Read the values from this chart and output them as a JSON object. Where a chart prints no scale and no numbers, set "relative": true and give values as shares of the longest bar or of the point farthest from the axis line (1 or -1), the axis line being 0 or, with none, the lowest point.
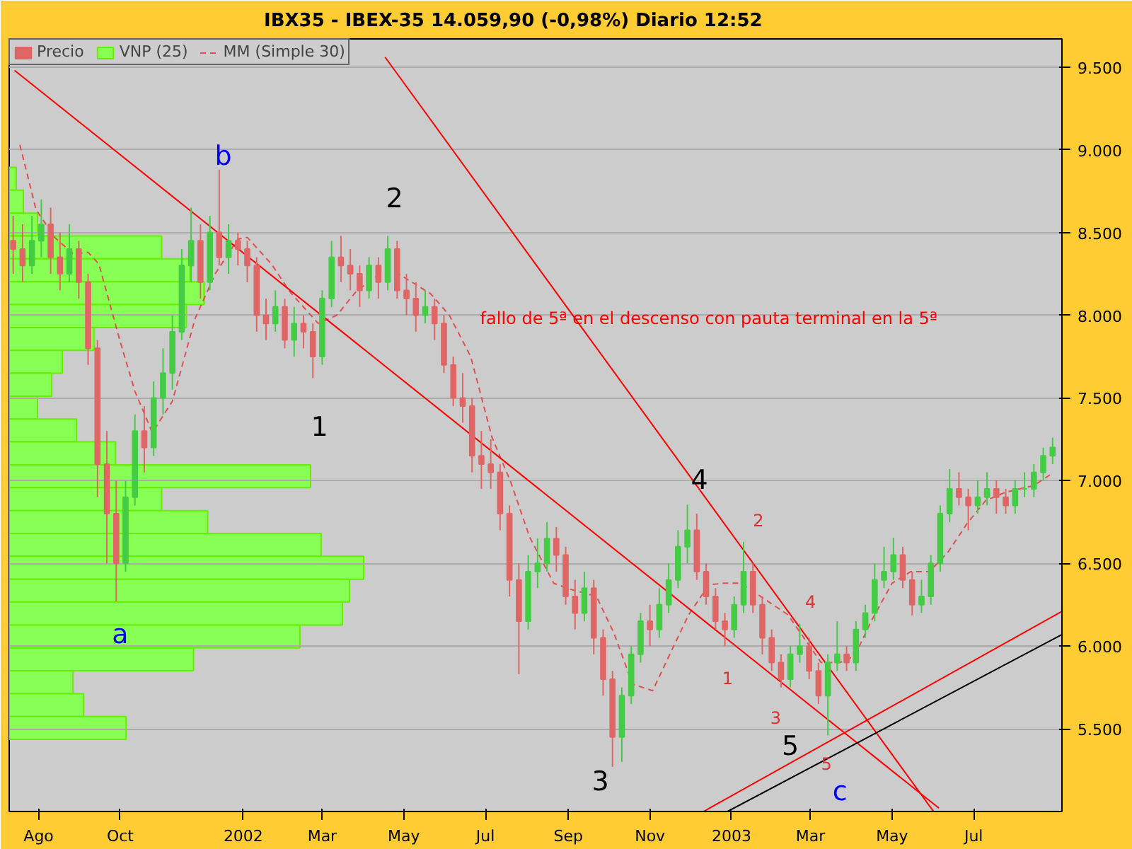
{
  "chart_data": [
    {
      "type": "candlestick",
      "title": "IBX35 - IBEX-35    14.059,90 (-0,98%)    Diario  12:52",
      "xlim": [
        "2001-07-10",
        "2003-09-05"
      ],
      "ylim": [
        5000,
        9670
      ],
      "xticks": [
        {
          "value": "2001-08-01",
          "label": "Ago"
        },
        {
          "value": "2001-10-01",
          "label": "Oct"
        },
        {
          "value": "2002-01-01",
          "label": "2002"
        },
        {
          "value": "2002-03-01",
          "label": "Mar"
        },
        {
          "value": "2002-05-01",
          "label": "May"
        },
        {
          "value": "2002-07-01",
          "label": "Jul"
        },
        {
          "value": "2002-09-01",
          "label": "Sep"
        },
        {
          "value": "2002-11-01",
          "label": "Nov"
        },
        {
          "value": "2003-01-01",
          "label": "2003"
        },
        {
          "value": "2003-03-01",
          "label": "Mar"
        },
        {
          "value": "2003-05-01",
          "label": "May"
        },
        {
          "value": "2003-07-01",
          "label": "Jul"
        }
      ],
      "yticks": [
        {
          "value": 5500,
          "label": "5.500"
        },
        {
          "value": 6000,
          "label": "6.000"
        },
        {
          "value": 6500,
          "label": "6.500"
        },
        {
          "value": 7000,
          "label": "7.000"
        },
        {
          "value": 7500,
          "label": "7.500"
        },
        {
          "value": 8000,
          "label": "8.000"
        },
        {
          "value": 8500,
          "label": "8.500"
        },
        {
          "value": 9000,
          "label": "9.000"
        },
        {
          "value": 9500,
          "label": "9.500"
        }
      ],
      "grid": "y",
      "legend": "top left",
      "series": [
        {
          "name": "Precio",
          "x": [
            "2001-07-13",
            "2001-07-20",
            "2001-07-27",
            "2001-08-03",
            "2001-08-10",
            "2001-08-17",
            "2001-08-24",
            "2001-08-31",
            "2001-09-07",
            "2001-09-14",
            "2001-09-21",
            "2001-09-28",
            "2001-10-05",
            "2001-10-12",
            "2001-10-19",
            "2001-10-26",
            "2001-11-02",
            "2001-11-09",
            "2001-11-16",
            "2001-11-23",
            "2001-11-30",
            "2001-12-07",
            "2001-12-14",
            "2001-12-21",
            "2001-12-28",
            "2002-01-04",
            "2002-01-11",
            "2002-01-18",
            "2002-01-25",
            "2002-02-01",
            "2002-02-08",
            "2002-02-15",
            "2002-02-22",
            "2002-03-01",
            "2002-03-08",
            "2002-03-15",
            "2002-03-22",
            "2002-03-29",
            "2002-04-05",
            "2002-04-12",
            "2002-04-19",
            "2002-04-26",
            "2002-05-03",
            "2002-05-10",
            "2002-05-17",
            "2002-05-24",
            "2002-05-31",
            "2002-06-07",
            "2002-06-14",
            "2002-06-21",
            "2002-06-28",
            "2002-07-05",
            "2002-07-12",
            "2002-07-19",
            "2002-07-26",
            "2002-08-02",
            "2002-08-09",
            "2002-08-16",
            "2002-08-23",
            "2002-08-30",
            "2002-09-06",
            "2002-09-13",
            "2002-09-20",
            "2002-09-27",
            "2002-10-04",
            "2002-10-11",
            "2002-10-18",
            "2002-10-25",
            "2002-11-01",
            "2002-11-08",
            "2002-11-15",
            "2002-11-22",
            "2002-11-29",
            "2002-12-06",
            "2002-12-13",
            "2002-12-20",
            "2002-12-27",
            "2003-01-03",
            "2003-01-10",
            "2003-01-17",
            "2003-01-24",
            "2003-01-31",
            "2003-02-07",
            "2003-02-14",
            "2003-02-21",
            "2003-02-28",
            "2003-03-07",
            "2003-03-14",
            "2003-03-21",
            "2003-03-28",
            "2003-04-04",
            "2003-04-11",
            "2003-04-18",
            "2003-04-25",
            "2003-05-02",
            "2003-05-09",
            "2003-05-16",
            "2003-05-23",
            "2003-05-30",
            "2003-06-06",
            "2003-06-13",
            "2003-06-20",
            "2003-06-27",
            "2003-07-04",
            "2003-07-11",
            "2003-07-18",
            "2003-07-25",
            "2003-08-01",
            "2003-08-08",
            "2003-08-15",
            "2003-08-22",
            "2003-08-29"
          ],
          "ohlc": [
            [
              8450,
              8600,
              8250,
              8400
            ],
            [
              8400,
              8550,
              8200,
              8300
            ],
            [
              8300,
              8600,
              8250,
              8450
            ],
            [
              8450,
              8700,
              8350,
              8550
            ],
            [
              8550,
              8650,
              8250,
              8350
            ],
            [
              8350,
              8500,
              8150,
              8250
            ],
            [
              8250,
              8550,
              8200,
              8400
            ],
            [
              8400,
              8450,
              8100,
              8200
            ],
            [
              8200,
              8250,
              7700,
              7800
            ],
            [
              7800,
              7850,
              6900,
              7100
            ],
            [
              7100,
              7300,
              6500,
              6800
            ],
            [
              6800,
              7000,
              6270,
              6500
            ],
            [
              6500,
              7000,
              6450,
              6900
            ],
            [
              6900,
              7400,
              6850,
              7300
            ],
            [
              7300,
              7450,
              7050,
              7200
            ],
            [
              7200,
              7600,
              7150,
              7500
            ],
            [
              7500,
              7800,
              7400,
              7650
            ],
            [
              7650,
              8000,
              7550,
              7900
            ],
            [
              7900,
              8400,
              7850,
              8300
            ],
            [
              8300,
              8650,
              8200,
              8450
            ],
            [
              8450,
              8550,
              8100,
              8200
            ],
            [
              8200,
              8600,
              8150,
              8500
            ],
            [
              8500,
              8880,
              8300,
              8350
            ],
            [
              8350,
              8550,
              8250,
              8450
            ],
            [
              8450,
              8500,
              8300,
              8400
            ],
            [
              8400,
              8450,
              8200,
              8300
            ],
            [
              8300,
              8350,
              7900,
              8000
            ],
            [
              8000,
              8100,
              7850,
              7950
            ],
            [
              7950,
              8150,
              7900,
              8050
            ],
            [
              8050,
              8100,
              7800,
              7850
            ],
            [
              7850,
              8050,
              7750,
              7950
            ],
            [
              7950,
              8000,
              7800,
              7900
            ],
            [
              7900,
              7950,
              7620,
              7750
            ],
            [
              7750,
              8150,
              7700,
              8100
            ],
            [
              8100,
              8450,
              8050,
              8350
            ],
            [
              8350,
              8480,
              8200,
              8300
            ],
            [
              8300,
              8400,
              8150,
              8250
            ],
            [
              8250,
              8300,
              8050,
              8150
            ],
            [
              8150,
              8350,
              8100,
              8300
            ],
            [
              8300,
              8350,
              8100,
              8200
            ],
            [
              8200,
              8480,
              8150,
              8400
            ],
            [
              8400,
              8450,
              8100,
              8150
            ],
            [
              8150,
              8250,
              8000,
              8100
            ],
            [
              8100,
              8200,
              7900,
              8000
            ],
            [
              8000,
              8150,
              7950,
              8050
            ],
            [
              8050,
              8100,
              7850,
              7950
            ],
            [
              7950,
              8000,
              7650,
              7700
            ],
            [
              7700,
              7750,
              7450,
              7500
            ],
            [
              7500,
              7650,
              7350,
              7450
            ],
            [
              7450,
              7500,
              7050,
              7150
            ],
            [
              7150,
              7300,
              6950,
              7100
            ],
            [
              7100,
              7250,
              6950,
              7050
            ],
            [
              7050,
              7100,
              6700,
              6800
            ],
            [
              6800,
              6850,
              6300,
              6400
            ],
            [
              6400,
              6500,
              5830,
              6150
            ],
            [
              6150,
              6550,
              6100,
              6450
            ],
            [
              6450,
              6650,
              6350,
              6500
            ],
            [
              6500,
              6750,
              6450,
              6650
            ],
            [
              6650,
              6720,
              6450,
              6550
            ],
            [
              6550,
              6600,
              6250,
              6300
            ],
            [
              6300,
              6400,
              6100,
              6200
            ],
            [
              6200,
              6450,
              6150,
              6350
            ],
            [
              6350,
              6400,
              5950,
              6050
            ],
            [
              6050,
              6100,
              5700,
              5800
            ],
            [
              5800,
              5850,
              5270,
              5450
            ],
            [
              5450,
              5750,
              5300,
              5700
            ],
            [
              5700,
              6000,
              5650,
              5950
            ],
            [
              5950,
              6200,
              5900,
              6150
            ],
            [
              6150,
              6250,
              6000,
              6100
            ],
            [
              6100,
              6350,
              6050,
              6250
            ],
            [
              6250,
              6500,
              6200,
              6400
            ],
            [
              6400,
              6700,
              6350,
              6600
            ],
            [
              6600,
              6855,
              6500,
              6700
            ],
            [
              6700,
              6800,
              6400,
              6450
            ],
            [
              6450,
              6500,
              6250,
              6300
            ],
            [
              6300,
              6350,
              6100,
              6150
            ],
            [
              6150,
              6200,
              6000,
              6100
            ],
            [
              6100,
              6300,
              6050,
              6250
            ],
            [
              6250,
              6630,
              6200,
              6450
            ],
            [
              6450,
              6500,
              6200,
              6250
            ],
            [
              6250,
              6300,
              5950,
              6050
            ],
            [
              6050,
              6100,
              5850,
              5900
            ],
            [
              5900,
              5950,
              5750,
              5800
            ],
            [
              5800,
              6000,
              5750,
              5950
            ],
            [
              5950,
              6135,
              5900,
              6000
            ],
            [
              6000,
              6050,
              5800,
              5850
            ],
            [
              5850,
              5900,
              5650,
              5700
            ],
            [
              5700,
              5950,
              5460,
              5900
            ],
            [
              5900,
              6150,
              5850,
              5950
            ],
            [
              5950,
              6000,
              5850,
              5900
            ],
            [
              5900,
              6150,
              5850,
              6100
            ],
            [
              6100,
              6250,
              6050,
              6200
            ],
            [
              6200,
              6500,
              6150,
              6400
            ],
            [
              6400,
              6600,
              6350,
              6450
            ],
            [
              6450,
              6655,
              6400,
              6550
            ],
            [
              6550,
              6600,
              6350,
              6400
            ],
            [
              6400,
              6450,
              6185,
              6250
            ],
            [
              6250,
              6400,
              6200,
              6300
            ],
            [
              6300,
              6550,
              6250,
              6500
            ],
            [
              6500,
              6850,
              6450,
              6800
            ],
            [
              6800,
              7070,
              6750,
              6950
            ],
            [
              6950,
              7050,
              6850,
              6900
            ],
            [
              6900,
              6950,
              6700,
              6850
            ],
            [
              6850,
              7000,
              6800,
              6900
            ],
            [
              6900,
              7050,
              6850,
              6950
            ],
            [
              6950,
              7000,
              6800,
              6900
            ],
            [
              6900,
              6950,
              6800,
              6850
            ],
            [
              6850,
              7000,
              6800,
              6950
            ],
            [
              6950,
              7050,
              6900,
              6950
            ],
            [
              6950,
              7100,
              6900,
              7050
            ],
            [
              7050,
              7200,
              7000,
              7150
            ],
            [
              7150,
              7260,
              7100,
              7200
            ]
          ]
        },
        {
          "name": "MM (Simple 30)",
          "type": "line",
          "line_style": "dashed",
          "color": "#e05050",
          "x": [
            "2001-07-18",
            "2001-07-30",
            "2001-08-13",
            "2001-08-27",
            "2001-09-07",
            "2001-09-15",
            "2001-10-01",
            "2001-10-12",
            "2001-10-25",
            "2001-11-09",
            "2001-11-26",
            "2001-12-11",
            "2001-12-28",
            "2002-01-04",
            "2002-01-22",
            "2002-02-05",
            "2002-02-26",
            "2002-03-12",
            "2002-03-26",
            "2002-04-09",
            "2002-04-27",
            "2002-05-21",
            "2002-06-04",
            "2002-06-20",
            "2002-07-06",
            "2002-07-20",
            "2002-08-03",
            "2002-08-21",
            "2002-09-04",
            "2002-09-22",
            "2002-10-05",
            "2002-10-19",
            "2002-11-03",
            "2002-11-17",
            "2002-11-30",
            "2002-12-15",
            "2002-12-26",
            "2003-01-08",
            "2003-02-12",
            "2003-03-09",
            "2003-03-23",
            "2003-04-03",
            "2003-04-16",
            "2003-05-01",
            "2003-05-15",
            "2003-05-29",
            "2003-06-12",
            "2003-06-26",
            "2003-07-10",
            "2003-07-25",
            "2003-08-15",
            "2003-08-28"
          ],
          "values": [
            9030,
            8640,
            8470,
            8370,
            8380,
            8310,
            7840,
            7540,
            7290,
            7480,
            7980,
            8250,
            8460,
            8470,
            8310,
            8140,
            7950,
            8000,
            8140,
            8230,
            8250,
            8130,
            8000,
            7750,
            7260,
            6990,
            6660,
            6380,
            6340,
            6300,
            6080,
            5770,
            5730,
            5970,
            6190,
            6370,
            6380,
            6380,
            6190,
            5900,
            5900,
            5940,
            6160,
            6380,
            6450,
            6450,
            6570,
            6740,
            6880,
            6930,
            6970,
            7040
          ]
        },
        {
          "type": "line",
          "color": "#ff0000",
          "x": [
            "2001-07-14",
            "2003-06-05"
          ],
          "values": [
            9480,
            5020
          ]
        },
        {
          "type": "line",
          "color": "#ff0000",
          "x": [
            "2002-04-17",
            "2003-06-01"
          ],
          "values": [
            9560,
            5000
          ]
        },
        {
          "type": "line",
          "color": "#ff0000",
          "x": [
            "2002-12-11",
            "2003-09-05"
          ],
          "values": [
            5000,
            6210
          ]
        },
        {
          "type": "line",
          "color": "#000000",
          "x": [
            "2002-12-29",
            "2003-09-05"
          ],
          "values": [
            5000,
            6070
          ]
        }
      ],
      "annotations": [
        "b",
        "a",
        "c",
        "1",
        "2",
        "3",
        "4",
        "5",
        "1",
        "2",
        "3",
        "4",
        "5",
        "fallo de 5ª en el descenso con pauta terminal en la 5ª"
      ]
    },
    {
      "type": "bar",
      "orientation": "horizontal",
      "relative": true,
      "categories": [
        null,
        null,
        null,
        null,
        null,
        null,
        null,
        null,
        null,
        null,
        null,
        null,
        null,
        null,
        null,
        null,
        null,
        null,
        null,
        null,
        null,
        null,
        null,
        null,
        null
      ],
      "series": [
        {
          "name": "VNP (25)",
          "color": "#88ff55",
          "values": [
            0.02,
            0.04,
            0.08,
            0.43,
            0.51,
            0.55,
            0.5,
            0.24,
            0.15,
            0.12,
            0.08,
            0.19,
            0.3,
            0.85,
            0.43,
            0.56,
            0.88,
            1,
            0.96,
            0.94,
            0.82,
            0.52,
            0.18,
            0.21,
            0.33
          ]
        }
      ]
    }
  ]
}
